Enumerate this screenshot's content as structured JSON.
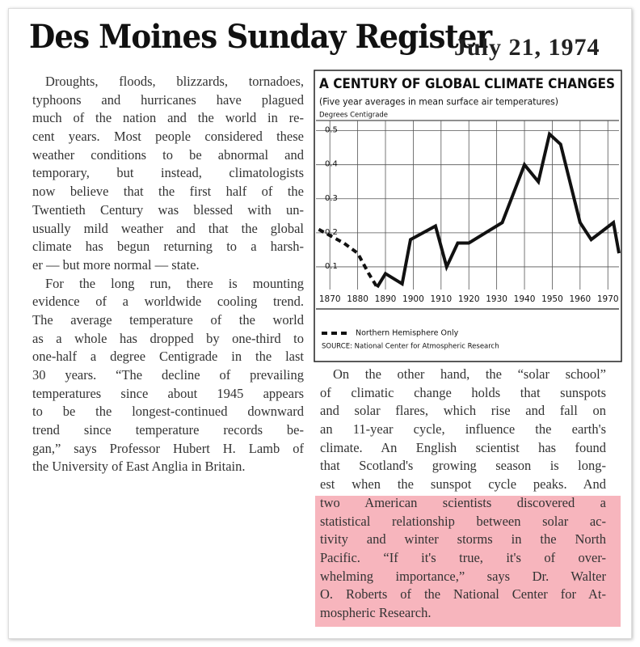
{
  "header": {
    "masthead": "Des Moines Sunday Register",
    "date": "July 21, 1974"
  },
  "article": {
    "left_paragraphs": [
      [
        "Droughts, floods, blizzards, tornadoes,",
        "typhoons and hurricanes have plagued",
        "much of the nation and the world in re-",
        "cent years. Most people considered these",
        "weather conditions to be abnormal and",
        "temporary, but instead, climatologists",
        "now believe that the first half of the",
        "Twentieth Century was blessed with un-",
        "usually mild weather and that the global",
        "climate has begun returning to a harsh-",
        "er — but more normal — state."
      ],
      [
        "For the long run, there is mounting",
        "evidence of a worldwide cooling trend.",
        "The average temperature of the world",
        "as a whole has dropped by one-third to",
        "one-half a degree Centigrade in the last",
        "30 years. “The decline of prevailing",
        "temperatures since about 1945 appears",
        "to be the longest-continued downward",
        "trend since temperature records be-",
        "gan,” says Professor Hubert H. Lamb of",
        "the University of East Anglia in Britain."
      ]
    ],
    "right_lines": [
      "On the other hand, the “solar school”",
      "of climatic change holds that sunspots",
      "and solar flares, which rise and fall on",
      "an 11-year cycle, influence the earth's",
      "climate. An English scientist has found",
      "that Scotland's growing season is long-",
      "est when the sunspot cycle peaks. And"
    ],
    "right_highlighted_lines": [
      "two American scientists discovered a",
      "statistical relationship between solar ac-",
      "tivity and winter storms in the North",
      "Pacific. “If it's true, it's of over-",
      "whelming importance,” says Dr. Walter",
      "O. Roberts of the National Center for At-",
      "mospheric Research."
    ]
  },
  "chart_data": {
    "type": "line",
    "title": "A CENTURY OF GLOBAL CLIMATE CHANGES",
    "subtitle": "(Five year averages in mean surface air temperatures)",
    "y_label": "Degrees Centigrade",
    "source": "SOURCE: National Center for Atmospheric Research",
    "xlim": [
      1865,
      1974
    ],
    "ylim": [
      0,
      0.53
    ],
    "xticks": [
      1870,
      1880,
      1890,
      1900,
      1910,
      1920,
      1930,
      1940,
      1950,
      1960,
      1970
    ],
    "yticks": [
      0.1,
      0.2,
      0.3,
      0.4,
      0.5
    ],
    "grid": true,
    "series": [
      {
        "name": "Northern Hemisphere Only",
        "color": "#111111",
        "style": "dashed",
        "x": [
          1866,
          1875,
          1880,
          1884,
          1887
        ],
        "values": [
          0.21,
          0.17,
          0.14,
          0.08,
          0.04
        ]
      },
      {
        "color": "#111111",
        "style": "solid",
        "x": [
          1887,
          1890,
          1896,
          1899,
          1908,
          1912,
          1916,
          1920,
          1926,
          1932,
          1940,
          1945,
          1949,
          1953,
          1960,
          1964,
          1972,
          1974
        ],
        "values": [
          0.04,
          0.08,
          0.05,
          0.18,
          0.22,
          0.1,
          0.17,
          0.17,
          0.2,
          0.23,
          0.4,
          0.35,
          0.49,
          0.46,
          0.23,
          0.18,
          0.23,
          0.14
        ]
      }
    ]
  }
}
